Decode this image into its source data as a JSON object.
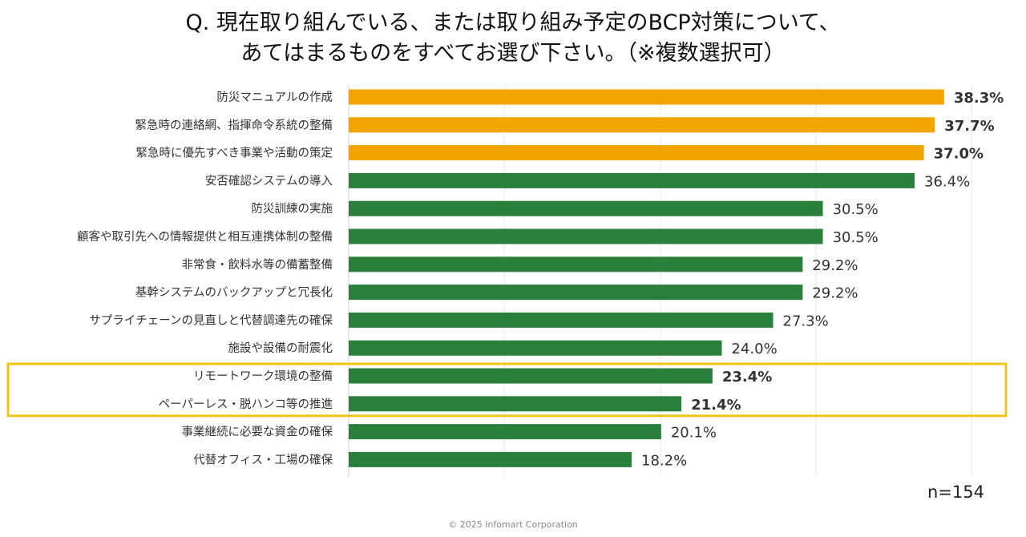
{
  "title_line1": "Q. 現在取り組んでいる、または取り組み予定のBCP対策について、",
  "title_line2": "あてはまるものをすべてお選び下さい。（※複数選択可）",
  "n_label": "n=154",
  "footer": "© 2025 Infomart Corporation",
  "colors": {
    "top3": "#F2A400",
    "other": "#2A7F3B",
    "highlight_box": "#F0C419",
    "top3_text": "#E9A21B"
  },
  "chart_data": {
    "type": "bar",
    "orientation": "horizontal",
    "title": "Q. 現在取り組んでいる、または取り組み予定のBCP対策について、あてはまるものをすべてお選び下さい。（※複数選択可）",
    "xlabel": "",
    "ylabel": "",
    "xlim": [
      0,
      40
    ],
    "grid": true,
    "categories": [
      "防災マニュアルの作成",
      "緊急時の連絡網、指揮命令系統の整備",
      "緊急時に優先すべき事業や活動の策定",
      "安否確認システムの導入",
      "防災訓練の実施",
      "顧客や取引先への情報提供と相互連携体制の整備",
      "非常食・飲料水等の備蓄整備",
      "基幹システムのバックアップと冗長化",
      "サプライチェーンの見直しと代替調達先の確保",
      "施設や設備の耐震化",
      "リモートワーク環境の整備",
      "ペーパーレス・脱ハンコ等の推進",
      "事業継続に必要な資金の確保",
      "代替オフィス・工場の確保"
    ],
    "values": [
      38.3,
      37.7,
      37.0,
      36.4,
      30.5,
      30.5,
      29.2,
      29.2,
      27.3,
      24.0,
      23.4,
      21.4,
      20.1,
      18.2
    ],
    "value_labels": [
      "38.3%",
      "37.7%",
      "37.0%",
      "36.4%",
      "30.5%",
      "30.5%",
      "29.2%",
      "29.2%",
      "27.3%",
      "24.0%",
      "23.4%",
      "21.4%",
      "20.1%",
      "18.2%"
    ],
    "top3_count": 3,
    "highlighted_indices": [
      10,
      11
    ]
  }
}
